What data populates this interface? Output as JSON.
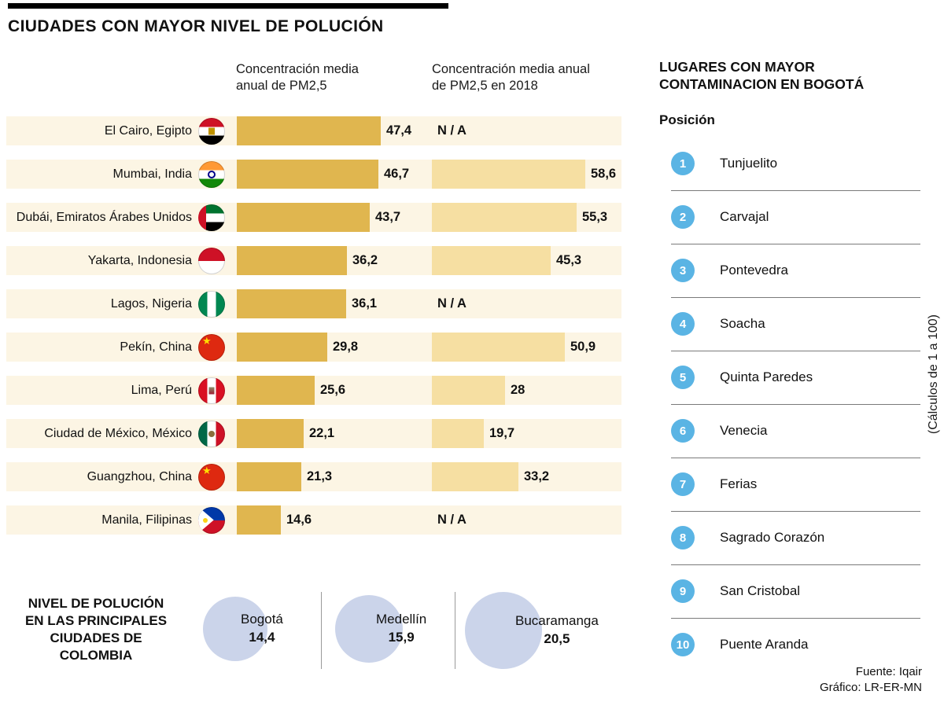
{
  "title": "CIUDADES CON MAYOR NIVEL DE POLUCIÓN",
  "colors": {
    "bar_primary": "#E0B64F",
    "bar_secondary": "#F6DFA2",
    "row_bg": "#FCF5E4",
    "rank_circle": "#5AB4E4",
    "bubble": "#CBD4EA"
  },
  "chart_data": {
    "type": "bar",
    "title": "CIUDADES CON MAYOR NIVEL DE POLUCIÓN",
    "series": [
      {
        "name": "Concentración media anual de PM2,5",
        "key": "pm25"
      },
      {
        "name": "Concentración media anual de PM2,5 en 2018",
        "key": "pm25_2018"
      }
    ],
    "rows": [
      {
        "city": "El Cairo, Egipto",
        "flag": "egypt",
        "pm25": 47.4,
        "pm25_label": "47,4",
        "pm25_2018": null,
        "pm25_2018_label": "N / A"
      },
      {
        "city": "Mumbai, India",
        "flag": "india",
        "pm25": 46.7,
        "pm25_label": "46,7",
        "pm25_2018": 58.6,
        "pm25_2018_label": "58,6"
      },
      {
        "city": "Dubái, Emiratos Árabes Unidos",
        "flag": "uae",
        "pm25": 43.7,
        "pm25_label": "43,7",
        "pm25_2018": 55.3,
        "pm25_2018_label": "55,3"
      },
      {
        "city": "Yakarta, Indonesia",
        "flag": "indonesia",
        "pm25": 36.2,
        "pm25_label": "36,2",
        "pm25_2018": 45.3,
        "pm25_2018_label": "45,3"
      },
      {
        "city": "Lagos, Nigeria",
        "flag": "nigeria",
        "pm25": 36.1,
        "pm25_label": "36,1",
        "pm25_2018": null,
        "pm25_2018_label": "N / A"
      },
      {
        "city": "Pekín, China",
        "flag": "china",
        "pm25": 29.8,
        "pm25_label": "29,8",
        "pm25_2018": 50.9,
        "pm25_2018_label": "50,9"
      },
      {
        "city": "Lima, Perú",
        "flag": "peru",
        "pm25": 25.6,
        "pm25_label": "25,6",
        "pm25_2018": 28,
        "pm25_2018_label": "28"
      },
      {
        "city": "Ciudad de México, México",
        "flag": "mexico",
        "pm25": 22.1,
        "pm25_label": "22,1",
        "pm25_2018": 19.7,
        "pm25_2018_label": "19,7"
      },
      {
        "city": "Guangzhou, China",
        "flag": "china",
        "pm25": 21.3,
        "pm25_label": "21,3",
        "pm25_2018": 33.2,
        "pm25_2018_label": "33,2"
      },
      {
        "city": "Manila, Filipinas",
        "flag": "philippines",
        "pm25": 14.6,
        "pm25_label": "14,6",
        "pm25_2018": null,
        "pm25_2018_label": "N / A"
      }
    ]
  },
  "colombia": {
    "label": "NIVEL DE POLUCIÓN EN LAS PRINCIPALES CIUDADES DE COLOMBIA",
    "cities": [
      {
        "name": "Bogotá",
        "value": 14.4,
        "label": "14,4"
      },
      {
        "name": "Medellín",
        "value": 15.9,
        "label": "15,9"
      },
      {
        "name": "Bucaramanga",
        "value": 20.5,
        "label": "20,5"
      }
    ]
  },
  "bogota_panel": {
    "title": "LUGARES CON MAYOR CONTAMINACION EN BOGOTÁ",
    "position_label": "Posición",
    "note": "(Cálculos de 1 a 100)",
    "items": [
      {
        "rank": "1",
        "name": "Tunjuelito"
      },
      {
        "rank": "2",
        "name": "Carvajal"
      },
      {
        "rank": "3",
        "name": "Pontevedra"
      },
      {
        "rank": "4",
        "name": "Soacha"
      },
      {
        "rank": "5",
        "name": "Quinta Paredes"
      },
      {
        "rank": "6",
        "name": "Venecia"
      },
      {
        "rank": "7",
        "name": "Ferias"
      },
      {
        "rank": "8",
        "name": "Sagrado Corazón"
      },
      {
        "rank": "9",
        "name": "San Cristobal"
      },
      {
        "rank": "10",
        "name": "Puente Aranda"
      }
    ]
  },
  "footer": {
    "source": "Fuente: Iqair",
    "credit": "Gráfico: LR-ER-MN"
  }
}
